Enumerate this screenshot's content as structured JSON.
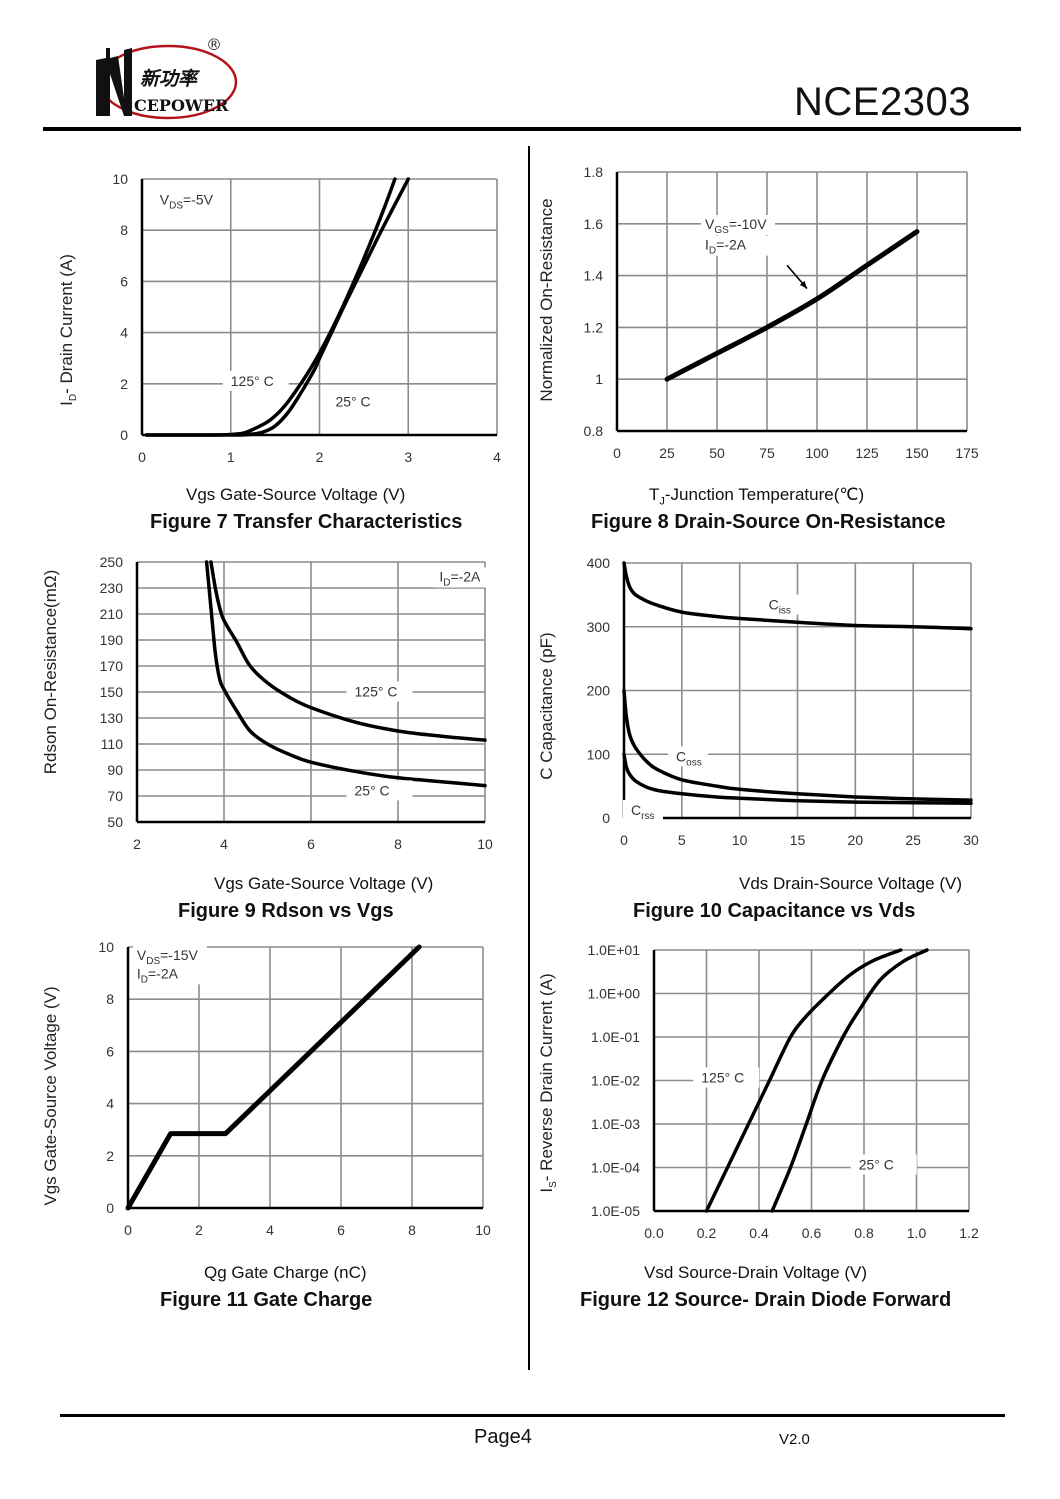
{
  "header": {
    "logo": {
      "brand_cn": "新功率",
      "brand_en": "CEPOWER",
      "brand_initial": "N",
      "registered_mark": "®",
      "ring_color": "#b3141c"
    },
    "part_number": "NCE2303"
  },
  "footer": {
    "page": "Page4",
    "version": "V2.0"
  },
  "chart_data": [
    {
      "id": "fig7",
      "type": "line",
      "title": "Figure 7 Transfer Characteristics",
      "xlabel": "Vgs Gate-Source Voltage (V)",
      "ylabel": "I_D- Drain Current (A)",
      "ylabel_parts": [
        "I",
        "D",
        "- Drain Current (A)"
      ],
      "xlim": [
        0,
        4
      ],
      "ylim": [
        0,
        10
      ],
      "xticks": [
        0,
        1,
        2,
        3,
        4
      ],
      "yticks": [
        0,
        2,
        4,
        6,
        8,
        10
      ],
      "xtick_labels": [
        "0",
        "1",
        "2",
        "3",
        "4"
      ],
      "ytick_labels": [
        "0",
        "2",
        "4",
        "6",
        "8",
        "10"
      ],
      "grid": true,
      "annotations": [
        {
          "text_parts": [
            "V",
            "DS",
            "=-5V"
          ],
          "x": 0.2,
          "y": 9.0
        }
      ],
      "series": [
        {
          "name": "125° C",
          "label_at": [
            1.0,
            2.0
          ],
          "x": [
            0.05,
            0.8,
            1.0,
            1.15,
            1.3,
            1.45,
            1.6,
            1.75,
            1.9,
            2.0,
            2.15,
            2.3,
            2.5,
            2.7,
            2.85
          ],
          "y": [
            0,
            0,
            0.02,
            0.08,
            0.3,
            0.6,
            1.1,
            1.8,
            2.6,
            3.2,
            4.2,
            5.3,
            6.9,
            8.6,
            10
          ]
        },
        {
          "name": "25° C",
          "label_at": [
            2.18,
            1.2
          ],
          "x": [
            0.05,
            1.0,
            1.2,
            1.35,
            1.5,
            1.65,
            1.8,
            1.95,
            2.0,
            2.15,
            2.3,
            2.5,
            2.7,
            2.85,
            3.0
          ],
          "y": [
            0,
            0,
            0.02,
            0.1,
            0.35,
            0.9,
            1.7,
            2.6,
            3.0,
            4.1,
            5.2,
            6.6,
            8.0,
            9.0,
            10
          ]
        }
      ]
    },
    {
      "id": "fig8",
      "type": "line",
      "title": "Figure 8 Drain-Source On-Resistance",
      "xlabel": "T_J-Junction Temperature(℃)",
      "xlabel_parts": [
        "T",
        "J",
        "-Junction Temperature(℃)"
      ],
      "ylabel": "Normalized On-Resistance",
      "xlim": [
        0,
        175
      ],
      "ylim": [
        0.8,
        1.8
      ],
      "xticks": [
        0,
        25,
        50,
        75,
        100,
        125,
        150,
        175
      ],
      "yticks": [
        0.8,
        1.0,
        1.2,
        1.4,
        1.6,
        1.8
      ],
      "xtick_labels": [
        "0",
        "25",
        "50",
        "75",
        "100",
        "125",
        "150",
        "175"
      ],
      "ytick_labels": [
        "0.8",
        "1",
        "1.2",
        "1.4",
        "1.6",
        "1.8"
      ],
      "grid": true,
      "annotations": [
        {
          "text_parts": [
            "V",
            "GS",
            "=-10V"
          ],
          "x": 44,
          "y": 1.58
        },
        {
          "text_parts": [
            "I",
            "D",
            "=-2A"
          ],
          "x": 44,
          "y": 1.5
        },
        {
          "arrow_from": [
            85,
            1.44
          ],
          "arrow_to": [
            95,
            1.35
          ]
        }
      ],
      "series": [
        {
          "name": "VGS=-10V, ID=-2A",
          "x": [
            25,
            50,
            75,
            100,
            125,
            150
          ],
          "y": [
            1.0,
            1.1,
            1.2,
            1.31,
            1.44,
            1.57
          ]
        }
      ]
    },
    {
      "id": "fig9",
      "type": "line",
      "title": "Figure 9 Rdson vs Vgs",
      "xlabel": "Vgs Gate-Source Voltage (V)",
      "ylabel": "Rdson On-Resistance(mΩ)",
      "xlim": [
        2,
        10
      ],
      "ylim": [
        50,
        250
      ],
      "xticks": [
        2,
        4,
        6,
        8,
        10
      ],
      "yticks": [
        50,
        70,
        90,
        110,
        130,
        150,
        170,
        190,
        210,
        230,
        250
      ],
      "xtick_labels": [
        "2",
        "4",
        "6",
        "8",
        "10"
      ],
      "ytick_labels": [
        "50",
        "70",
        "90",
        "110",
        "130",
        "150",
        "170",
        "190",
        "210",
        "230",
        "250"
      ],
      "grid": true,
      "annotations": [
        {
          "text_parts": [
            "I",
            "D",
            "=-2A"
          ],
          "x": 8.95,
          "y": 235
        }
      ],
      "series": [
        {
          "name": "125° C",
          "label_at": [
            7.0,
            148
          ],
          "x": [
            3.7,
            3.8,
            3.9,
            4.0,
            4.3,
            4.6,
            5.0,
            5.5,
            6.0,
            7.0,
            8.0,
            9.0,
            10.0
          ],
          "y": [
            250,
            230,
            215,
            205,
            188,
            170,
            157,
            146,
            138,
            127,
            120,
            116,
            113
          ]
        },
        {
          "name": "25° C",
          "label_at": [
            7.0,
            72
          ],
          "x": [
            3.6,
            3.7,
            3.8,
            3.9,
            4.0,
            4.3,
            4.6,
            5.0,
            5.5,
            6.0,
            7.0,
            8.0,
            9.0,
            10.0
          ],
          "y": [
            250,
            215,
            180,
            160,
            152,
            135,
            120,
            110,
            102,
            96,
            89,
            84,
            81,
            78
          ]
        }
      ]
    },
    {
      "id": "fig10",
      "type": "line",
      "title": "Figure 10 Capacitance vs Vds",
      "xlabel": "Vds Drain-Source Voltage (V)",
      "ylabel": "C Capacitance (pF)",
      "xlim": [
        0,
        30
      ],
      "ylim": [
        0,
        400
      ],
      "xticks": [
        0,
        5,
        10,
        15,
        20,
        25,
        30
      ],
      "yticks": [
        0,
        100,
        200,
        300,
        400
      ],
      "xtick_labels": [
        "0",
        "5",
        "10",
        "15",
        "20",
        "25",
        "30"
      ],
      "ytick_labels": [
        "0",
        "100",
        "200",
        "300",
        "400"
      ],
      "grid": true,
      "series": [
        {
          "name": "Ciss",
          "label_parts": [
            "C",
            "iss"
          ],
          "label_at": [
            12.5,
            330
          ],
          "x": [
            0,
            0.2,
            0.5,
            1,
            2,
            3,
            5,
            8,
            10,
            15,
            20,
            25,
            30
          ],
          "y": [
            400,
            380,
            362,
            350,
            340,
            333,
            323,
            316,
            313,
            307,
            302,
            300,
            297
          ]
        },
        {
          "name": "Coss",
          "label_parts": [
            "C",
            "oss"
          ],
          "label_at": [
            4.5,
            92
          ],
          "x": [
            0,
            0.2,
            0.5,
            1,
            2,
            3,
            5,
            8,
            10,
            15,
            20,
            25,
            30
          ],
          "y": [
            200,
            160,
            130,
            110,
            88,
            75,
            60,
            50,
            45,
            38,
            33,
            30,
            28
          ]
        },
        {
          "name": "Crss",
          "label_parts": [
            "C",
            "rss"
          ],
          "label_at": [
            0.6,
            8
          ],
          "x": [
            0,
            0.2,
            0.5,
            1,
            2,
            3,
            5,
            8,
            10,
            15,
            20,
            25,
            30
          ],
          "y": [
            100,
            80,
            68,
            58,
            48,
            43,
            38,
            33,
            31,
            27,
            25,
            24,
            23
          ]
        }
      ]
    },
    {
      "id": "fig11",
      "type": "line",
      "title": "Figure 11 Gate Charge",
      "xlabel": "Qg Gate Charge (nC)",
      "ylabel": "Vgs Gate-Source Voltage (V)",
      "xlim": [
        0,
        10
      ],
      "ylim": [
        0,
        10
      ],
      "xticks": [
        0,
        2,
        4,
        6,
        8,
        10
      ],
      "yticks": [
        0,
        2,
        4,
        6,
        8,
        10
      ],
      "xtick_labels": [
        "0",
        "2",
        "4",
        "6",
        "8",
        "10"
      ],
      "ytick_labels": [
        "0",
        "2",
        "4",
        "6",
        "8",
        "10"
      ],
      "grid": true,
      "annotations": [
        {
          "text_parts": [
            "V",
            "DS",
            "=-15V"
          ],
          "x": 0.25,
          "y": 9.5
        },
        {
          "text_parts": [
            "I",
            "D",
            "=-2A"
          ],
          "x": 0.25,
          "y": 8.8
        }
      ],
      "series": [
        {
          "name": "Vgs vs Qg",
          "x": [
            0,
            1.2,
            2.75,
            8.2
          ],
          "y": [
            0,
            2.85,
            2.85,
            10
          ]
        }
      ]
    },
    {
      "id": "fig12",
      "type": "line",
      "title": "Figure 12 Source- Drain Diode Forward",
      "xlabel": "Vsd Source-Drain Voltage (V)",
      "ylabel": "I_S- Reverse Drain Current (A)",
      "ylabel_parts": [
        "I",
        "S",
        "- Reverse Drain Current (A)"
      ],
      "yscale": "log",
      "xlim": [
        0,
        1.2
      ],
      "ylim": [
        1e-05,
        10
      ],
      "xticks": [
        0,
        0.2,
        0.4,
        0.6,
        0.8,
        1.0,
        1.2
      ],
      "yticks": [
        1e-05,
        0.0001,
        0.001,
        0.01,
        0.1,
        1,
        10
      ],
      "xtick_labels": [
        "0.0",
        "0.2",
        "0.4",
        "0.6",
        "0.8",
        "1.0",
        "1.2"
      ],
      "ytick_labels": [
        "1.0E-05",
        "1.0E-04",
        "1.0E-03",
        "1.0E-02",
        "1.0E-01",
        "1.0E+00",
        "1.0E+01"
      ],
      "grid": true,
      "series": [
        {
          "name": "125° C",
          "label_at": [
            0.18,
            0.01
          ],
          "x": [
            0.2,
            0.28,
            0.36,
            0.44,
            0.52,
            0.58,
            0.65,
            0.74,
            0.83,
            0.94
          ],
          "y": [
            1e-05,
            0.0001,
            0.001,
            0.01,
            0.1,
            0.3,
            0.8,
            2.5,
            5.5,
            10
          ]
        },
        {
          "name": "25° C",
          "label_at": [
            0.78,
            0.0001
          ],
          "x": [
            0.45,
            0.52,
            0.58,
            0.64,
            0.72,
            0.78,
            0.86,
            0.95,
            1.04
          ],
          "y": [
            1e-05,
            0.0001,
            0.001,
            0.01,
            0.1,
            0.4,
            2.0,
            5.5,
            10
          ]
        }
      ]
    }
  ]
}
